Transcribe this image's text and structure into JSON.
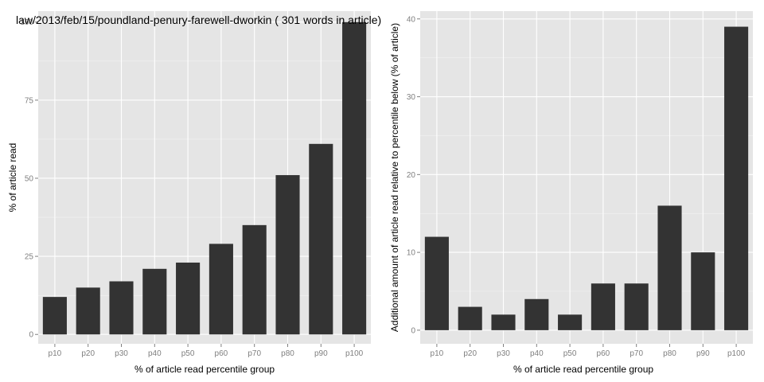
{
  "chart_data": [
    {
      "type": "bar",
      "title": "law/2013/feb/15/poundland-penury-farewell-dworkin ( 301 words in article)",
      "xlabel": "% of article read percentile group",
      "ylabel": "% of article read",
      "categories": [
        "p10",
        "p20",
        "p30",
        "p40",
        "p50",
        "p60",
        "p70",
        "p80",
        "p90",
        "p100"
      ],
      "values": [
        12,
        15,
        17,
        21,
        23,
        29,
        35,
        51,
        61,
        100
      ],
      "ylim": [
        -3,
        103.5
      ],
      "yticks": [
        0,
        25,
        50,
        75,
        100
      ],
      "ytick_labels": [
        "0",
        "25",
        "50",
        "75",
        "100"
      ],
      "grid": true,
      "bar_color": "#333333",
      "panel_color": "#e5e5e5"
    },
    {
      "type": "bar",
      "title": "",
      "xlabel": "% of article read percentile group",
      "ylabel": "Additional amount of article read relative to percentile below (% of article)",
      "categories": [
        "p10",
        "p20",
        "p30",
        "p40",
        "p50",
        "p60",
        "p70",
        "p80",
        "p90",
        "p100"
      ],
      "values": [
        12,
        3,
        2,
        4,
        2,
        6,
        6,
        16,
        10,
        39
      ],
      "ylim": [
        -1.75,
        41
      ],
      "yticks": [
        0,
        10,
        20,
        30,
        40
      ],
      "ytick_labels": [
        "0",
        "10",
        "20",
        "30",
        "40"
      ],
      "grid": true,
      "bar_color": "#333333",
      "panel_color": "#e5e5e5"
    }
  ]
}
